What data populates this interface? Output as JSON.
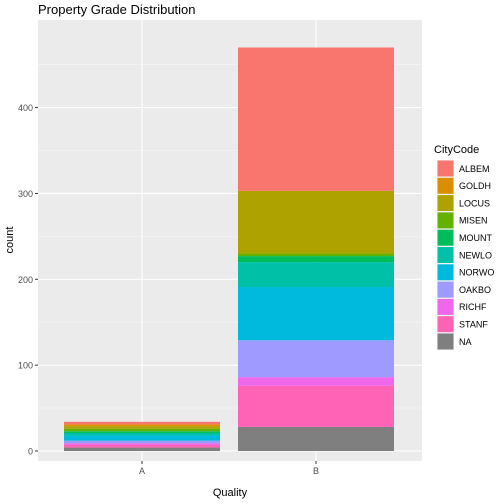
{
  "chart_data": {
    "type": "bar",
    "stacked": true,
    "title": "Property Grade Distribution",
    "xlabel": "Quality",
    "ylabel": "count",
    "categories": [
      "A",
      "B"
    ],
    "ylim": [
      0,
      500
    ],
    "yticks": [
      0,
      100,
      200,
      300,
      400
    ],
    "grid": true,
    "legend": {
      "title": "CityCode",
      "placement": "right"
    },
    "series": [
      {
        "name": "ALBEM",
        "color": "#F8766D",
        "values": [
          3,
          167
        ]
      },
      {
        "name": "GOLDH",
        "color": "#DB8E00",
        "values": [
          2,
          0
        ]
      },
      {
        "name": "LOCUS",
        "color": "#AEA200",
        "values": [
          3,
          73
        ]
      },
      {
        "name": "MISEN",
        "color": "#64B200",
        "values": [
          3,
          3
        ]
      },
      {
        "name": "MOUNT",
        "color": "#00BD5C",
        "values": [
          2,
          7
        ]
      },
      {
        "name": "NEWLO",
        "color": "#00C1A7",
        "values": [
          3,
          29
        ]
      },
      {
        "name": "NORWO",
        "color": "#00BADE",
        "values": [
          6,
          62
        ]
      },
      {
        "name": "OAKBO",
        "color": "#9E9AFF",
        "values": [
          3,
          43
        ]
      },
      {
        "name": "RICHF",
        "color": "#EF67EB",
        "values": [
          2,
          10
        ]
      },
      {
        "name": "STANF",
        "color": "#FF63B6",
        "values": [
          3,
          48
        ]
      },
      {
        "name": "NA",
        "color": "#7F7F7F",
        "values": [
          4,
          28
        ]
      }
    ]
  }
}
